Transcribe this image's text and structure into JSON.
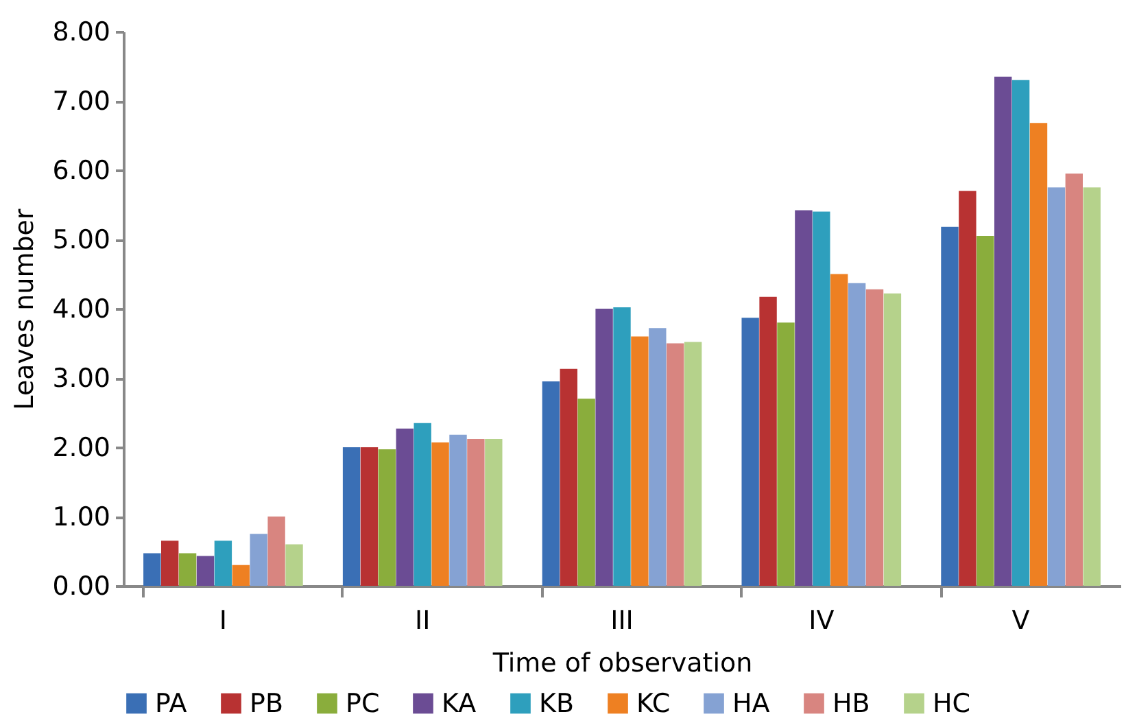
{
  "chart_data": {
    "type": "bar",
    "xlabel": "Time of observation",
    "ylabel": "Leaves number",
    "categories": [
      "I",
      "II",
      "III",
      "IV",
      "V"
    ],
    "series": [
      {
        "name": "PA",
        "color": "#3a6fb5",
        "values": [
          0.47,
          2.0,
          2.95,
          3.87,
          5.18
        ]
      },
      {
        "name": "PB",
        "color": "#b83232",
        "values": [
          0.65,
          2.0,
          3.13,
          4.17,
          5.7
        ]
      },
      {
        "name": "PC",
        "color": "#8aad3c",
        "values": [
          0.47,
          1.97,
          2.7,
          3.8,
          5.05
        ]
      },
      {
        "name": "KA",
        "color": "#6b4c94",
        "values": [
          0.43,
          2.27,
          4.0,
          5.42,
          7.35
        ]
      },
      {
        "name": "KB",
        "color": "#2e9fbd",
        "values": [
          0.65,
          2.35,
          4.02,
          5.4,
          7.3
        ]
      },
      {
        "name": "KC",
        "color": "#ee8022",
        "values": [
          0.3,
          2.07,
          3.6,
          4.5,
          6.68
        ]
      },
      {
        "name": "HA",
        "color": "#85a2d3",
        "values": [
          0.75,
          2.18,
          3.72,
          4.37,
          5.75
        ]
      },
      {
        "name": "HB",
        "color": "#d88580",
        "values": [
          1.0,
          2.12,
          3.5,
          4.28,
          5.95
        ]
      },
      {
        "name": "HC",
        "color": "#b5d28b",
        "values": [
          0.6,
          2.12,
          3.52,
          4.22,
          5.75
        ]
      }
    ],
    "ylim": [
      0,
      8
    ],
    "yticks": [
      {
        "value": 0,
        "label": "0.00"
      },
      {
        "value": 1,
        "label": "1.00"
      },
      {
        "value": 2,
        "label": "2.00"
      },
      {
        "value": 3,
        "label": "3.00"
      },
      {
        "value": 4,
        "label": "4.00"
      },
      {
        "value": 5,
        "label": "5.00"
      },
      {
        "value": 6,
        "label": "6.00"
      },
      {
        "value": 7,
        "label": "7.00"
      },
      {
        "value": 8,
        "label": "8.00"
      }
    ],
    "grid": false,
    "legend": "bottom"
  }
}
